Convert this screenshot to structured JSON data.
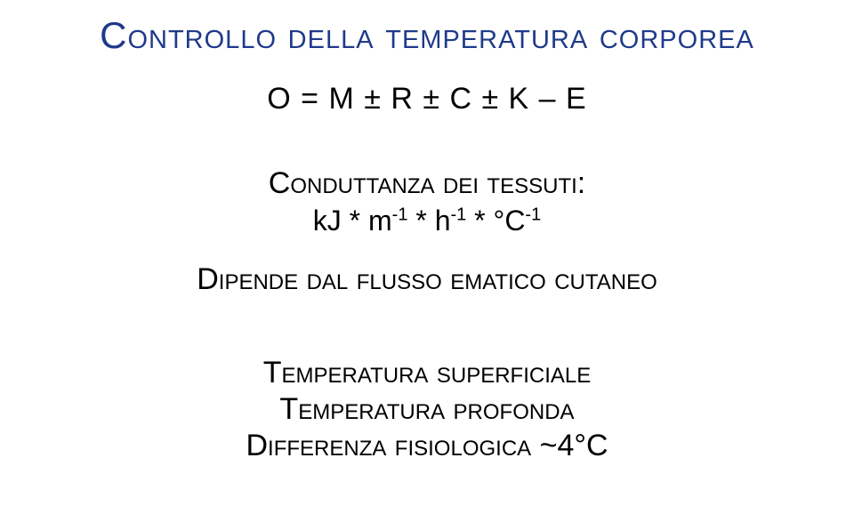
{
  "title": "Controllo della temperatura corporea",
  "equation": "O = M ± R ± C ± K – E",
  "conduttanza": {
    "label": "Conduttanza dei tessuti:",
    "units_html": "kJ * m<sup>-1</sup> * h<sup>-1</sup> * °C<sup>-1</sup>"
  },
  "dipende": "Dipende dal flusso ematico cutaneo",
  "bottom": {
    "line1": "Temperatura superficiale",
    "line2": "Temperatura profonda",
    "line3": "Differenza fisiologica ~4°C"
  },
  "colors": {
    "title": "#1f3a8a",
    "body": "#000000",
    "background": "#ffffff"
  },
  "fontsizes": {
    "title": 42,
    "equation": 34,
    "body": 34,
    "units": 32
  }
}
